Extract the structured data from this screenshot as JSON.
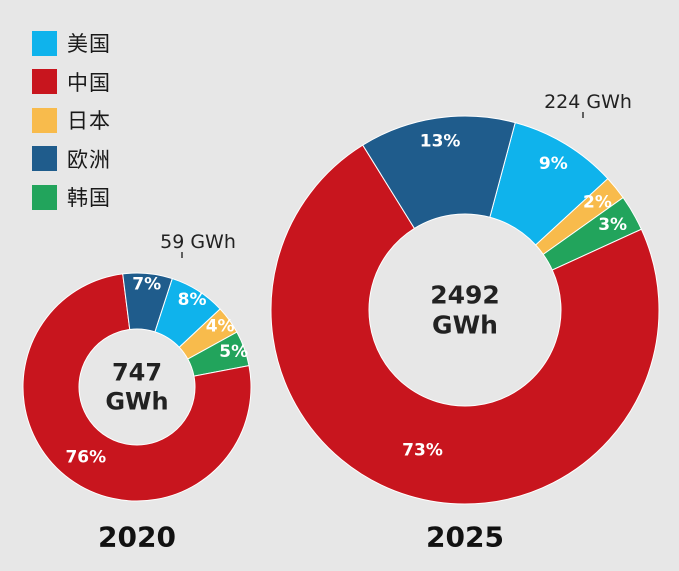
{
  "legend": [
    {
      "label": "美国",
      "color": "#0fb3ec"
    },
    {
      "label": "中国",
      "color": "#c8151e"
    },
    {
      "label": "日本",
      "color": "#f8bb4c"
    },
    {
      "label": "欧洲",
      "color": "#1f5c8c"
    },
    {
      "label": "韩国",
      "color": "#22a45c"
    }
  ],
  "chart_data": [
    {
      "type": "pie",
      "title": "2020",
      "center_value": "747",
      "center_unit": "GWh",
      "callout": "59 GWh",
      "slices": [
        {
          "name": "美国",
          "value": 8,
          "label": "8%"
        },
        {
          "name": "日本",
          "value": 4,
          "label": "4%"
        },
        {
          "name": "韩国",
          "value": 5,
          "label": "5%"
        },
        {
          "name": "中国",
          "value": 76,
          "label": "76%"
        },
        {
          "name": "欧洲",
          "value": 7,
          "label": "7%"
        }
      ]
    },
    {
      "type": "pie",
      "title": "2025",
      "center_value": "2492",
      "center_unit": "GWh",
      "callout": "224 GWh",
      "slices": [
        {
          "name": "美国",
          "value": 9,
          "label": "9%"
        },
        {
          "name": "日本",
          "value": 2,
          "label": "2%"
        },
        {
          "name": "韩国",
          "value": 3,
          "label": "3%"
        },
        {
          "name": "中国",
          "value": 73,
          "label": "73%"
        },
        {
          "name": "欧洲",
          "value": 13,
          "label": "13%"
        }
      ]
    }
  ]
}
